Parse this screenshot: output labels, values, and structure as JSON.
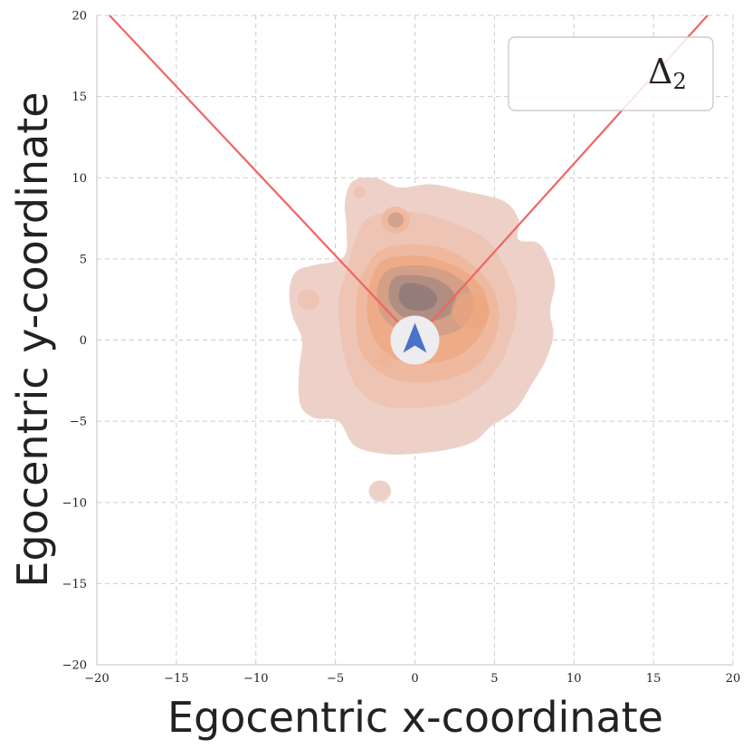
{
  "chart_data": {
    "type": "heatmap",
    "subtype": "2d-kde-density",
    "xlabel": "Egocentric x-coordinate",
    "ylabel": "Egocentric y-coordinate",
    "xlim": [
      -20,
      20
    ],
    "ylim": [
      -20,
      20
    ],
    "xticks": [
      -20,
      -15,
      -10,
      -5,
      0,
      5,
      10,
      15,
      20
    ],
    "yticks": [
      -20,
      -15,
      -10,
      -5,
      0,
      5,
      10,
      15,
      20
    ],
    "grid": true,
    "legend": {
      "label": "Δ",
      "subscript": "2",
      "placement": "top-right"
    },
    "colors": {
      "density_light": "#eccdc4",
      "density_mid": "#ebaa86",
      "density_dark": "#8f7a78",
      "fov_lines": "#f06464",
      "agent_marker": "#4a72c8",
      "agent_circle": "#ededf0",
      "grid": "#cccccc"
    },
    "agent": {
      "x": 0,
      "y": 0,
      "icon": "arrow-up-icon"
    },
    "fov_lines": [
      {
        "x": [
          0,
          -19.2
        ],
        "y": [
          0,
          20
        ]
      },
      {
        "x": [
          0,
          18.4
        ],
        "y": [
          0,
          20
        ]
      }
    ],
    "density_levels": [
      {
        "level": 1,
        "polygon": [
          [
            -2.5,
            10
          ],
          [
            -1,
            9.4
          ],
          [
            1,
            9.6
          ],
          [
            3,
            9.2
          ],
          [
            5.5,
            8.6
          ],
          [
            6.5,
            7.5
          ],
          [
            6.5,
            6.2
          ],
          [
            7.7,
            6
          ],
          [
            8.3,
            5.2
          ],
          [
            8.8,
            3.6
          ],
          [
            8.5,
            1.8
          ],
          [
            8.7,
            0.3
          ],
          [
            8.2,
            -1.3
          ],
          [
            7.3,
            -2.8
          ],
          [
            6.3,
            -4.3
          ],
          [
            4.8,
            -5.3
          ],
          [
            3.8,
            -6.2
          ],
          [
            2.3,
            -6.7
          ],
          [
            0,
            -7
          ],
          [
            -2,
            -7
          ],
          [
            -3.8,
            -6.5
          ],
          [
            -4.8,
            -5
          ],
          [
            -6.3,
            -4.8
          ],
          [
            -7.2,
            -4
          ],
          [
            -7.3,
            -2
          ],
          [
            -7.1,
            0
          ],
          [
            -7.7,
            1.5
          ],
          [
            -7.9,
            3
          ],
          [
            -7.5,
            4.2
          ],
          [
            -6.4,
            4.6
          ],
          [
            -4.5,
            5.1
          ],
          [
            -4.3,
            6.8
          ],
          [
            -4.4,
            8.5
          ],
          [
            -3.9,
            9.8
          ]
        ]
      },
      {
        "level": 2,
        "polygon": [
          [
            -3,
            7.5
          ],
          [
            -1,
            7.9
          ],
          [
            1,
            7.7
          ],
          [
            3,
            7
          ],
          [
            4.5,
            6.2
          ],
          [
            5.5,
            4.8
          ],
          [
            6.3,
            3
          ],
          [
            6.4,
            1.5
          ],
          [
            6,
            0
          ],
          [
            5.3,
            -1.6
          ],
          [
            4,
            -3
          ],
          [
            2.3,
            -3.9
          ],
          [
            0,
            -4.2
          ],
          [
            -2.2,
            -4
          ],
          [
            -3.6,
            -3
          ],
          [
            -4.3,
            -1.5
          ],
          [
            -4.7,
            0.5
          ],
          [
            -4.8,
            2.5
          ],
          [
            -4.3,
            4.3
          ],
          [
            -3.8,
            6
          ]
        ]
      },
      {
        "level": 3,
        "polygon": [
          [
            -2,
            5.6
          ],
          [
            0,
            5.9
          ],
          [
            2,
            5.6
          ],
          [
            3.7,
            4.6
          ],
          [
            4.8,
            3.3
          ],
          [
            5.3,
            1.8
          ],
          [
            5.1,
            0.3
          ],
          [
            4.2,
            -1.3
          ],
          [
            2.8,
            -2.2
          ],
          [
            1,
            -2.6
          ],
          [
            -1,
            -2.5
          ],
          [
            -2.5,
            -1.8
          ],
          [
            -3.5,
            -0.5
          ],
          [
            -3.7,
            1.3
          ],
          [
            -3.6,
            3.1
          ],
          [
            -3,
            4.6
          ]
        ]
      },
      {
        "level": 4,
        "polygon": [
          [
            -1.8,
            5
          ],
          [
            0,
            5.2
          ],
          [
            1.7,
            4.9
          ],
          [
            3.2,
            4.2
          ],
          [
            4.3,
            3.1
          ],
          [
            4.6,
            1.8
          ],
          [
            4.3,
            0.6
          ],
          [
            3.3,
            -0.6
          ],
          [
            1.8,
            -1.3
          ],
          [
            0,
            -1.4
          ],
          [
            -1.6,
            -1
          ],
          [
            -2.6,
            0.2
          ],
          [
            -3,
            1.6
          ],
          [
            -2.9,
            3.1
          ],
          [
            -2.5,
            4.3
          ]
        ]
      },
      {
        "level": 5,
        "polygon": [
          [
            -1.5,
            4.4
          ],
          [
            0,
            4.6
          ],
          [
            1.5,
            4.4
          ],
          [
            2.8,
            3.8
          ],
          [
            3.6,
            2.8
          ],
          [
            3.6,
            1.7
          ],
          [
            3,
            0.8
          ],
          [
            1.8,
            0.3
          ],
          [
            0.4,
            0.3
          ],
          [
            -1,
            0.6
          ],
          [
            -2,
            1.4
          ],
          [
            -2.4,
            2.6
          ],
          [
            -2.2,
            3.7
          ]
        ]
      },
      {
        "level": 6,
        "polygon": [
          [
            -1.2,
            3.9
          ],
          [
            0,
            4
          ],
          [
            1.2,
            3.8
          ],
          [
            2.2,
            3.2
          ],
          [
            2.6,
            2.4
          ],
          [
            2.2,
            1.6
          ],
          [
            1.2,
            1.2
          ],
          [
            0,
            1.2
          ],
          [
            -1,
            1.6
          ],
          [
            -1.6,
            2.4
          ],
          [
            -1.6,
            3.3
          ]
        ]
      },
      {
        "level": 7,
        "polygon": [
          [
            -0.8,
            3.4
          ],
          [
            0,
            3.5
          ],
          [
            0.9,
            3.2
          ],
          [
            1.4,
            2.6
          ],
          [
            1.1,
            2
          ],
          [
            0.2,
            1.8
          ],
          [
            -0.6,
            2
          ],
          [
            -1,
            2.6
          ]
        ]
      }
    ],
    "density_blobs": [
      {
        "x": -1.2,
        "y": 7.4,
        "r": 0.9,
        "level": 3
      },
      {
        "x": -1.2,
        "y": 7.4,
        "r": 0.5,
        "level": 5
      },
      {
        "x": -3.5,
        "y": 9.1,
        "r": 0.4,
        "level": 2
      },
      {
        "x": -6.7,
        "y": 2.5,
        "r": 0.7,
        "level": 2
      },
      {
        "x": -2.2,
        "y": -9.3,
        "r": 0.7,
        "level": 1
      },
      {
        "x": 3.5,
        "y": 1.8,
        "r": 1.2,
        "level": 4
      },
      {
        "x": -1.8,
        "y": -1.2,
        "r": 0.5,
        "level": 3
      }
    ]
  }
}
